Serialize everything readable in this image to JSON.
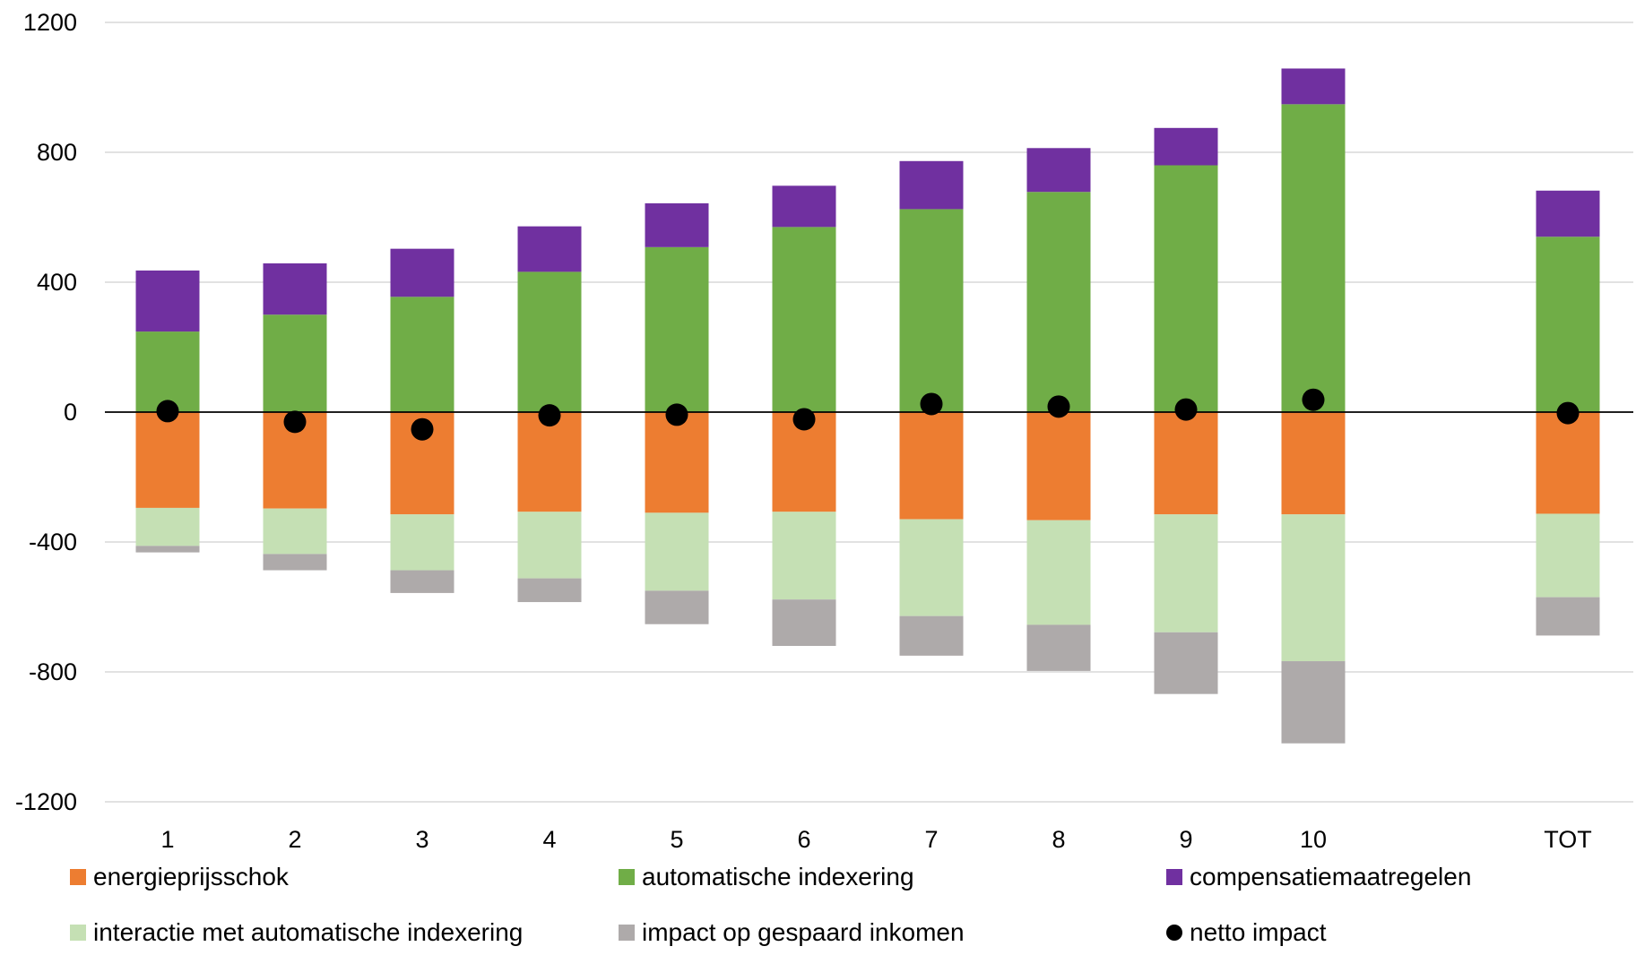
{
  "chart_data": {
    "type": "bar",
    "stacked": true,
    "title": "",
    "xlabel": "",
    "ylabel": "",
    "ylim": [
      -1200,
      1200
    ],
    "yticks": [
      1200,
      800,
      400,
      0,
      -400,
      -800,
      -1200
    ],
    "ytick_labels": [
      "1200",
      "800",
      "400",
      "0",
      "-400",
      "-800",
      "-1200"
    ],
    "grid": "horizontal",
    "legend_position": "bottom",
    "categories": [
      "1",
      "2",
      "3",
      "4",
      "5",
      "6",
      "7",
      "8",
      "9",
      "10",
      "TOT"
    ],
    "series": [
      {
        "name": "energieprijsschok",
        "color": "#ED7D31",
        "stack": "negative",
        "values": [
          -295,
          -297,
          -315,
          -307,
          -310,
          -307,
          -330,
          -333,
          -315,
          -315,
          -313
        ]
      },
      {
        "name": "automatische indexering",
        "color": "#70AD47",
        "stack": "positive",
        "values": [
          248,
          300,
          355,
          432,
          508,
          570,
          625,
          678,
          760,
          948,
          540
        ]
      },
      {
        "name": "compensatiemaatregelen",
        "color": "#7030A0",
        "stack": "positive",
        "values": [
          188,
          158,
          148,
          140,
          135,
          127,
          148,
          135,
          115,
          110,
          142
        ]
      },
      {
        "name": "interactie met automatische indexering",
        "color": "#C5E0B4",
        "stack": "negative",
        "values": [
          -117,
          -140,
          -172,
          -205,
          -240,
          -270,
          -298,
          -322,
          -363,
          -452,
          -257
        ]
      },
      {
        "name": "impact op gespaard inkomen",
        "color": "#AEAAAA",
        "stack": "negative",
        "values": [
          -20,
          -50,
          -70,
          -73,
          -103,
          -143,
          -122,
          -142,
          -190,
          -253,
          -118
        ]
      },
      {
        "name": "netto impact",
        "color": "#000000",
        "type": "scatter",
        "values": [
          3,
          -30,
          -53,
          -10,
          -8,
          -22,
          25,
          17,
          8,
          38,
          -3
        ]
      }
    ]
  },
  "legend": {
    "items": [
      {
        "label": "energieprijsschok",
        "color": "#ED7D31",
        "marker": "square"
      },
      {
        "label": "automatische indexering",
        "color": "#70AD47",
        "marker": "square"
      },
      {
        "label": "compensatiemaatregelen",
        "color": "#7030A0",
        "marker": "square"
      },
      {
        "label": "interactie met automatische indexering",
        "color": "#C5E0B4",
        "marker": "square"
      },
      {
        "label": "impact op gespaard inkomen",
        "color": "#AEAAAA",
        "marker": "square"
      },
      {
        "label": "netto impact",
        "color": "#000000",
        "marker": "circle"
      }
    ]
  },
  "colors": {
    "gridline": "#D9D9D9",
    "zero_line": "#000000"
  }
}
